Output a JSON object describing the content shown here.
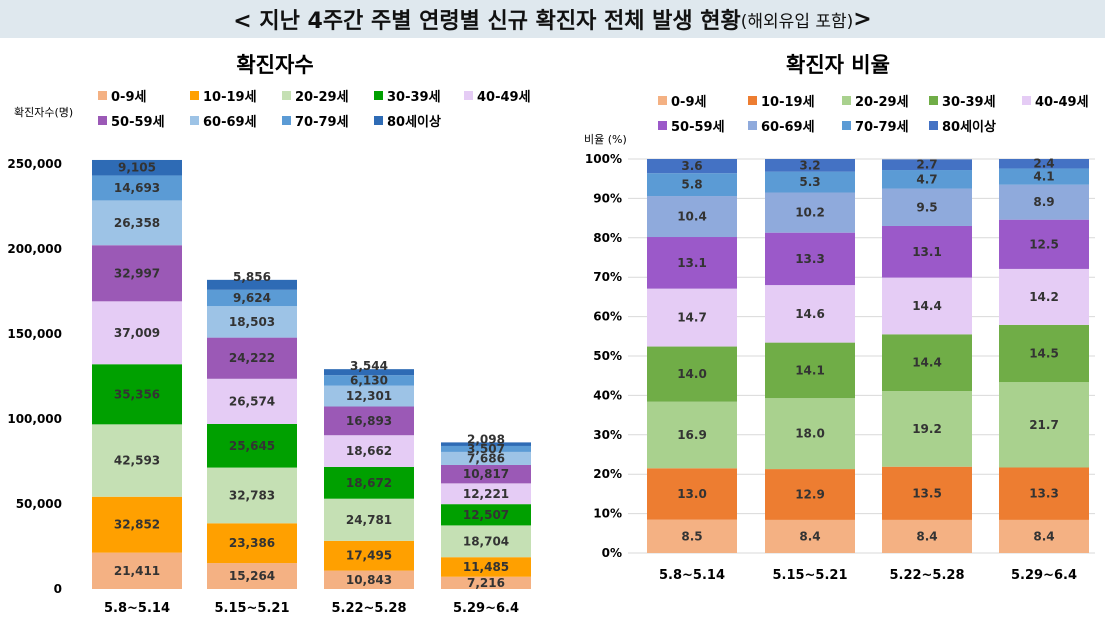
{
  "page": {
    "title_main": "< 지난 4주간 주별 연령별 신규 확진자 전체 발생 현황",
    "title_sub": "(해외유입 포함)",
    "title_end": ">"
  },
  "chart_data": [
    {
      "type": "bar",
      "stacked": true,
      "title": "확진자수",
      "xlabel": "",
      "ylabel": "확진자수(명)",
      "ylim": [
        0,
        250000
      ],
      "yticks": [
        0,
        50000,
        100000,
        150000,
        200000,
        250000
      ],
      "ytick_labels": [
        "0",
        "50,000",
        "100,000",
        "150,000",
        "200,000",
        "250,000"
      ],
      "categories": [
        "5.8~5.14",
        "5.15~5.21",
        "5.22~5.28",
        "5.29~6.4"
      ],
      "legend_position": "top",
      "series": [
        {
          "name": "0-9세",
          "color": "#f4b183",
          "values": [
            21411,
            15264,
            10843,
            7216
          ],
          "labels": [
            "21,411",
            "15,264",
            "10,843",
            "7,216"
          ]
        },
        {
          "name": "10-19세",
          "color": "#ffa000",
          "values": [
            32852,
            23386,
            17495,
            11485
          ],
          "labels": [
            "32,852",
            "23,386",
            "17,495",
            "11,485"
          ]
        },
        {
          "name": "20-29세",
          "color": "#c5e0b4",
          "values": [
            42593,
            32783,
            24781,
            18704
          ],
          "labels": [
            "42,593",
            "32,783",
            "24,781",
            "18,704"
          ]
        },
        {
          "name": "30-39세",
          "color": "#00a000",
          "values": [
            35356,
            25645,
            18672,
            12507
          ],
          "labels": [
            "35,356",
            "25,645",
            "18,672",
            "12,507"
          ]
        },
        {
          "name": "40-49세",
          "color": "#e5ccf5",
          "values": [
            37009,
            26574,
            18662,
            12221
          ],
          "labels": [
            "37,009",
            "26,574",
            "18,662",
            "12,221"
          ]
        },
        {
          "name": "50-59세",
          "color": "#9b59b6",
          "values": [
            32997,
            24222,
            16893,
            10817
          ],
          "labels": [
            "32,997",
            "24,222",
            "16,893",
            "10,817"
          ]
        },
        {
          "name": "60-69세",
          "color": "#9dc3e6",
          "values": [
            26358,
            18503,
            12301,
            7686
          ],
          "labels": [
            "26,358",
            "18,503",
            "12,301",
            "7,686"
          ]
        },
        {
          "name": "70-79세",
          "color": "#5b9bd5",
          "values": [
            14693,
            9624,
            6130,
            3507
          ],
          "labels": [
            "14,693",
            "9,624",
            "6,130",
            "3,507"
          ]
        },
        {
          "name": "80세이상",
          "color": "#2e6bb5",
          "values": [
            9105,
            5856,
            3544,
            2098
          ],
          "labels": [
            "9,105",
            "5,856",
            "3,544",
            "2,098"
          ]
        }
      ]
    },
    {
      "type": "bar",
      "stacked": true,
      "title": "확진자 비율",
      "xlabel": "",
      "ylabel": "비율 (%)",
      "ylim": [
        0,
        100
      ],
      "yticks": [
        0,
        10,
        20,
        30,
        40,
        50,
        60,
        70,
        80,
        90,
        100
      ],
      "ytick_labels": [
        "0%",
        "10%",
        "20%",
        "30%",
        "40%",
        "50%",
        "60%",
        "70%",
        "80%",
        "90%",
        "100%"
      ],
      "grid": true,
      "categories": [
        "5.8~5.14",
        "5.15~5.21",
        "5.22~5.28",
        "5.29~6.4"
      ],
      "legend_position": "top",
      "series": [
        {
          "name": "0-9세",
          "color": "#f4b183",
          "values": [
            8.5,
            8.4,
            8.4,
            8.4
          ],
          "labels": [
            "8.5",
            "8.4",
            "8.4",
            "8.4"
          ]
        },
        {
          "name": "10-19세",
          "color": "#ed7d31",
          "values": [
            13.0,
            12.9,
            13.5,
            13.3
          ],
          "labels": [
            "13.0",
            "12.9",
            "13.5",
            "13.3"
          ]
        },
        {
          "name": "20-29세",
          "color": "#a9d18e",
          "values": [
            16.9,
            18.0,
            19.2,
            21.7
          ],
          "labels": [
            "16.9",
            "18.0",
            "19.2",
            "21.7"
          ]
        },
        {
          "name": "30-39세",
          "color": "#70ad47",
          "values": [
            14.0,
            14.1,
            14.4,
            14.5
          ],
          "labels": [
            "14.0",
            "14.1",
            "14.4",
            "14.5"
          ]
        },
        {
          "name": "40-49세",
          "color": "#e5ccf5",
          "values": [
            14.7,
            14.6,
            14.4,
            14.2
          ],
          "labels": [
            "14.7",
            "14.6",
            "14.4",
            "14.2"
          ]
        },
        {
          "name": "50-59세",
          "color": "#9b59c9",
          "values": [
            13.1,
            13.3,
            13.1,
            12.5
          ],
          "labels": [
            "13.1",
            "13.3",
            "13.1",
            "12.5"
          ]
        },
        {
          "name": "60-69세",
          "color": "#8faadc",
          "values": [
            10.4,
            10.2,
            9.5,
            8.9
          ],
          "labels": [
            "10.4",
            "10.2",
            "9.5",
            "8.9"
          ]
        },
        {
          "name": "70-79세",
          "color": "#5b9bd5",
          "values": [
            5.8,
            5.3,
            4.7,
            4.1
          ],
          "labels": [
            "5.8",
            "5.3",
            "4.7",
            "4.1"
          ]
        },
        {
          "name": "80세이상",
          "color": "#4472c4",
          "values": [
            3.6,
            3.2,
            2.7,
            2.4
          ],
          "labels": [
            "3.6",
            "3.2",
            "2.7",
            "2.4"
          ]
        }
      ]
    }
  ]
}
